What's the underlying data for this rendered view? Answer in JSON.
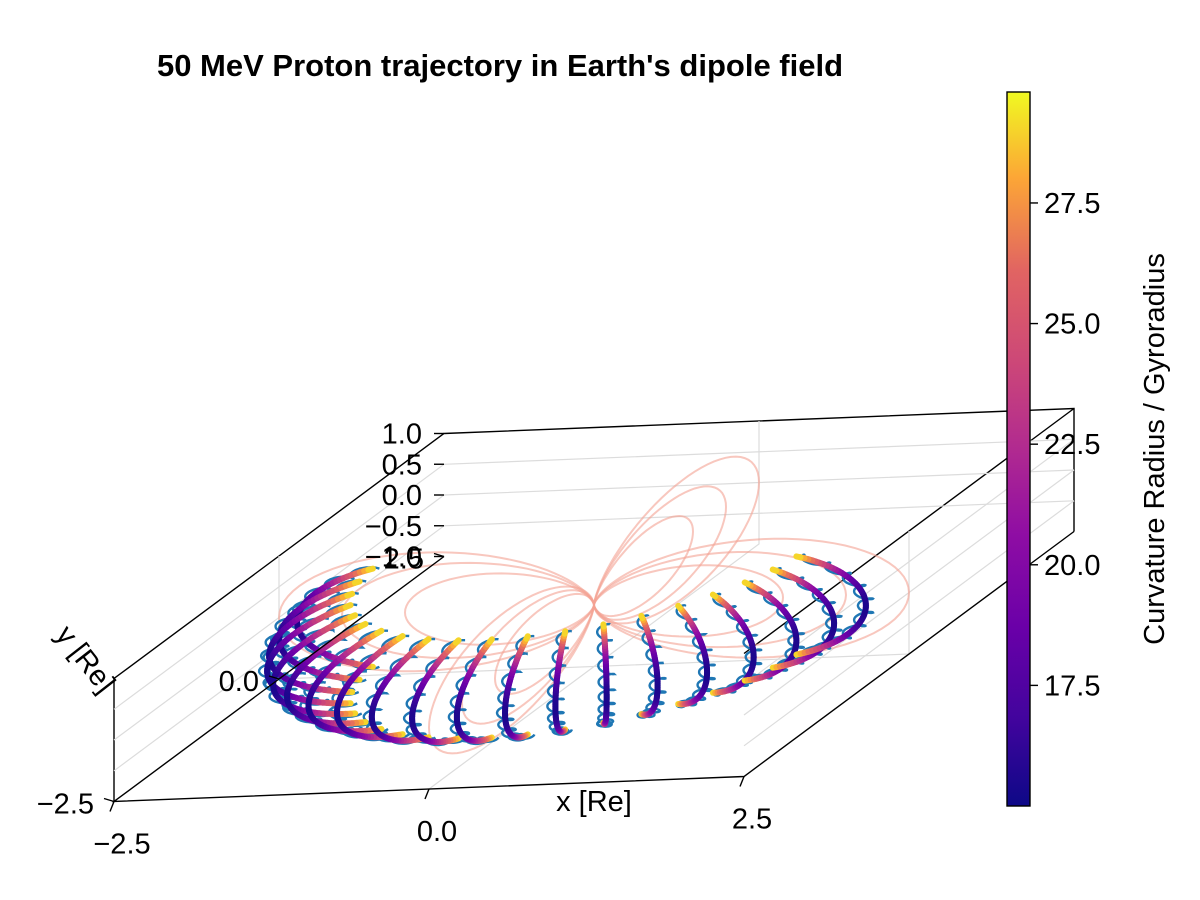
{
  "chart_data": {
    "type": "3d-line",
    "title": "50 MeV Proton trajectory in Earth's dipole field",
    "xlabel": "x [Re]",
    "ylabel": "y [Re]",
    "zlabel": "",
    "xlim": [
      -2.5,
      2.5
    ],
    "ylim": [
      -2.5,
      2.5
    ],
    "zlim": [
      -1.0,
      1.0
    ],
    "x_ticks": [
      "−2.5",
      "0.0",
      "2.5"
    ],
    "y_ticks": [
      "−2.5",
      "0.0",
      "2.5"
    ],
    "z_ticks": [
      "−1.0",
      "−0.5",
      "0.0",
      "0.5",
      "1.0"
    ],
    "grid": true,
    "colormap": "plasma",
    "colorbar": {
      "label": "Curvature Radius / Gyroradius",
      "range": [
        15.0,
        29.8
      ],
      "ticks": [
        "17.5",
        "20.0",
        "22.5",
        "25.0",
        "27.5"
      ],
      "tick_values": [
        17.5,
        20.0,
        22.5,
        25.0,
        27.5
      ]
    },
    "series": [
      {
        "kind": "field-lines",
        "color": "#f4a193",
        "L_shells": [
          1.5,
          2.0,
          2.5
        ],
        "azimuths_deg": [
          0,
          90,
          180,
          270
        ]
      },
      {
        "kind": "proton-trajectory",
        "gyration_color": "#1f77b4",
        "L_shell": 2.3,
        "bounce_segments": 20,
        "mirror_latitude_deg": 25,
        "ratio_equator": 15.5,
        "ratio_mirror": 29.5
      }
    ]
  }
}
